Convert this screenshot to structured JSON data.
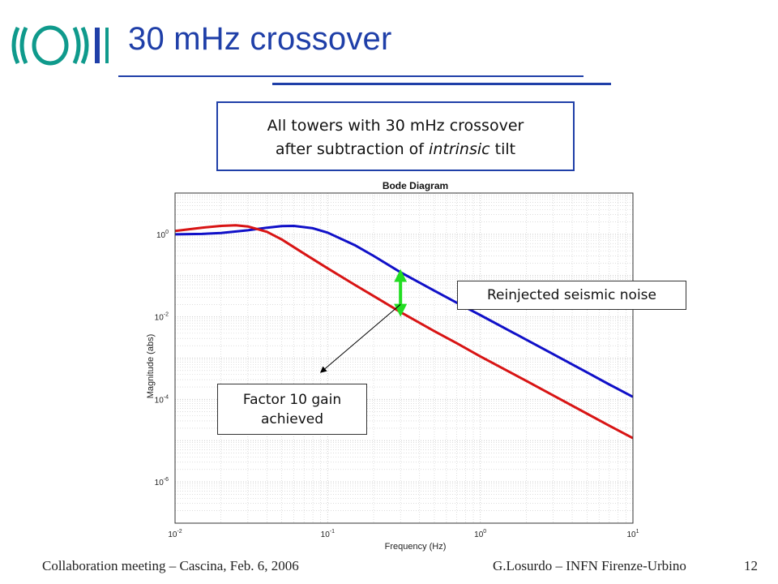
{
  "slide": {
    "title": "30 mHz crossover",
    "logo_name": "virgo-logo",
    "accent_color": "#1f3fa8"
  },
  "callouts": {
    "main_line1": "All towers with 30 mHz crossover",
    "main_line2_pre": "after subtraction of ",
    "main_line2_em": "intrinsic",
    "main_line2_post": " tilt",
    "reinjected": "Reinjected seismic noise",
    "factor_line1": "Factor 10 gain",
    "factor_line2": "achieved"
  },
  "footer": {
    "left": "Collaboration meeting – Cascina, Feb. 6, 2006",
    "right": "G.Losurdo – INFN Firenze-Urbino",
    "page": "12"
  },
  "chart_data": {
    "type": "line",
    "title": "Bode Diagram",
    "xlabel": "Frequency (Hz)",
    "ylabel": "Magnitude (abs)",
    "xscale": "log",
    "yscale": "log",
    "xlim": [
      0.01,
      10
    ],
    "ylim": [
      1e-07,
      10
    ],
    "x_ticks": [
      {
        "value": 0.01,
        "base": "10",
        "exp": "-2"
      },
      {
        "value": 0.1,
        "base": "10",
        "exp": "-1"
      },
      {
        "value": 1,
        "base": "10",
        "exp": "0"
      },
      {
        "value": 10,
        "base": "10",
        "exp": "1"
      }
    ],
    "y_ticks": [
      {
        "value": 1,
        "base": "10",
        "exp": "0"
      },
      {
        "value": 0.01,
        "base": "10",
        "exp": "-2"
      },
      {
        "value": 0.0001,
        "base": "10",
        "exp": "-4"
      },
      {
        "value": 1e-06,
        "base": "10",
        "exp": "-6"
      }
    ],
    "grid": true,
    "series": [
      {
        "color": "#1010c8",
        "x": [
          0.01,
          0.015,
          0.02,
          0.03,
          0.04,
          0.05,
          0.06,
          0.08,
          0.1,
          0.15,
          0.2,
          0.3,
          0.5,
          0.7,
          1,
          2,
          3,
          5,
          7,
          10
        ],
        "y": [
          1.0,
          1.02,
          1.08,
          1.25,
          1.45,
          1.58,
          1.6,
          1.4,
          1.1,
          0.55,
          0.3,
          0.12,
          0.043,
          0.022,
          0.011,
          0.0028,
          0.00125,
          0.00045,
          0.00023,
          0.000115
        ]
      },
      {
        "color": "#d81414",
        "x": [
          0.01,
          0.015,
          0.02,
          0.025,
          0.03,
          0.04,
          0.05,
          0.07,
          0.1,
          0.15,
          0.2,
          0.3,
          0.5,
          0.7,
          1,
          2,
          3,
          5,
          7,
          10
        ],
        "y": [
          1.2,
          1.45,
          1.6,
          1.65,
          1.55,
          1.15,
          0.75,
          0.34,
          0.15,
          0.06,
          0.032,
          0.013,
          0.0045,
          0.0023,
          0.0011,
          0.00028,
          0.000125,
          4.5e-05,
          2.3e-05,
          1.15e-05
        ]
      }
    ],
    "annotations": [
      {
        "type": "double-arrow",
        "color": "#22dd22",
        "x": 0.3,
        "y_top": 0.12,
        "y_bottom": 0.012
      },
      {
        "type": "arrow",
        "color": "#000000",
        "from": [
          0.3,
          0.02
        ],
        "to": [
          0.09,
          0.00045
        ]
      }
    ]
  }
}
